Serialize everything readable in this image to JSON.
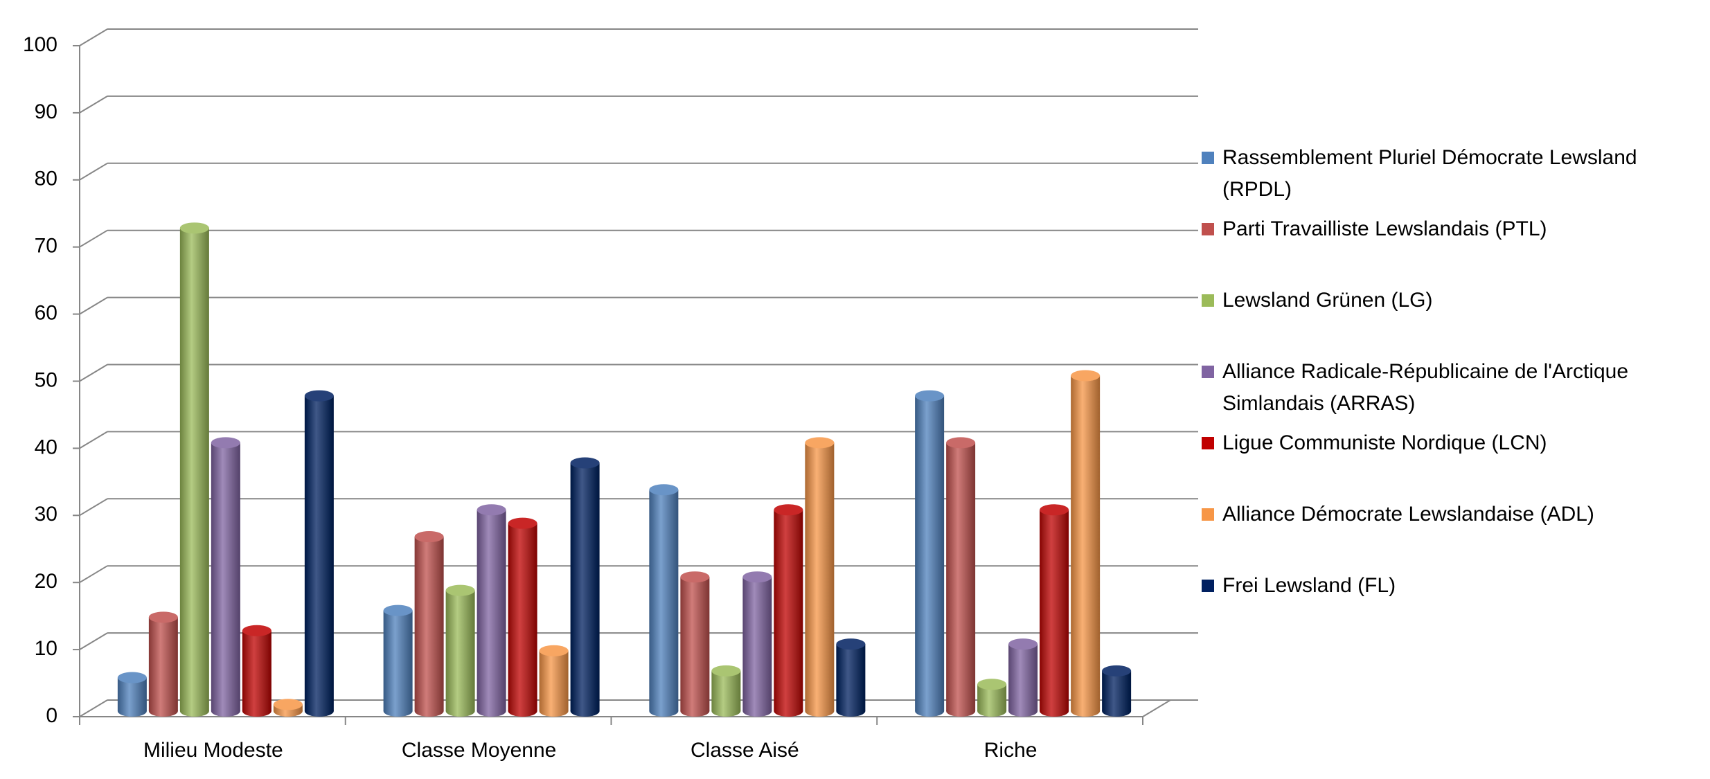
{
  "chart_data": {
    "type": "bar",
    "categories": [
      "Milieu Modeste",
      "Classe Moyenne",
      "Classe Aisé",
      "Riche"
    ],
    "series": [
      {
        "name": "Rassemblement Pluriel Démocrate Lewsland (RPDL)",
        "color": "#4f81bd",
        "values": [
          5,
          15,
          33,
          47
        ]
      },
      {
        "name": "Parti Travailliste Lewslandais (PTL)",
        "color": "#c0504d",
        "values": [
          14,
          26,
          20,
          40
        ]
      },
      {
        "name": "Lewsland Grünen (LG)",
        "color": "#9bbb59",
        "values": [
          72,
          18,
          6,
          4
        ]
      },
      {
        "name": "Alliance Radicale-Républicaine de l'Arctique Simlandais (ARRAS)",
        "color": "#8064a2",
        "values": [
          40,
          30,
          20,
          10
        ]
      },
      {
        "name": "Ligue Communiste Nordique (LCN)",
        "color": "#c00000",
        "values": [
          12,
          28,
          30,
          30
        ]
      },
      {
        "name": "Alliance Démocrate Lewslandaise (ADL)",
        "color": "#f79646",
        "values": [
          1,
          9,
          40,
          50
        ]
      },
      {
        "name": "Frei Lewsland (FL)",
        "color": "#002060",
        "values": [
          47,
          37,
          10,
          6
        ]
      }
    ],
    "ylim": [
      0,
      100
    ],
    "yticks": [
      0,
      10,
      20,
      30,
      40,
      50,
      60,
      70,
      80,
      90,
      100
    ],
    "grid": true,
    "legend": "right"
  }
}
